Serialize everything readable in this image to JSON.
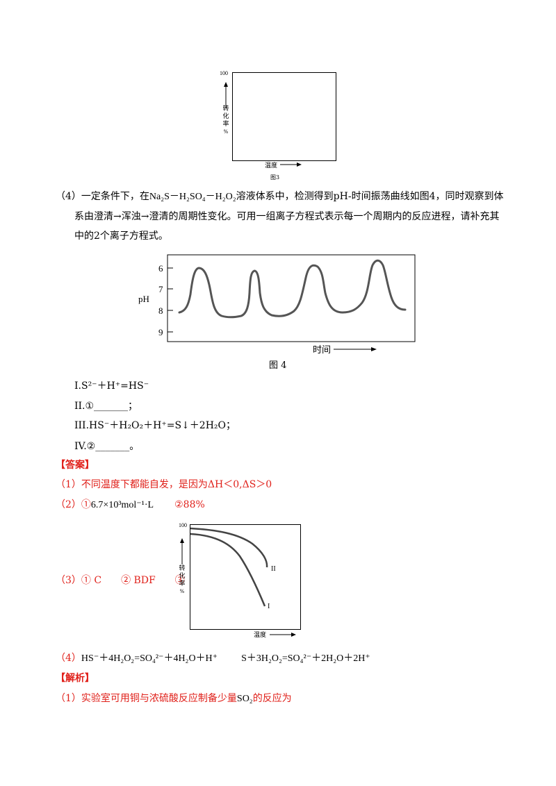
{
  "fig3": {
    "ytick": "100",
    "ylabel_chars": [
      "转",
      "化",
      "率",
      "%"
    ],
    "xlabel": "温度",
    "caption": "图3"
  },
  "q4": {
    "prefix": "（4）一定条件下，在",
    "system": "Na₂S－H₂SO₄－H₂O₂",
    "line1_rest": "溶液体系中，检测得到pH-时间振荡曲线如图4，同时观察到体",
    "line2": "系由澄清→浑浊→澄清的周期性变化。可用一组离子方程式表示每一个周期内的反应进程，请补充其",
    "line3": "中的2个离子方程式。"
  },
  "fig4": {
    "yticks": [
      "6",
      "7",
      "8",
      "9"
    ],
    "ylabel": "pH",
    "xlabel": "时间",
    "caption": "图 4"
  },
  "equations": {
    "I": "I.S²⁻＋H⁺=HS⁻",
    "II": "II.①_______；",
    "III": "III.HS⁻＋H₂O₂＋H⁺=S↓＋2H₂O；",
    "IV": "IV.②_______。"
  },
  "answer_header": "【答案】",
  "answers": {
    "a1": "（1）不同温度下都能自发，是因为ΔH＜0,ΔS＞0",
    "a2_prefix": "（2）①",
    "a2_value": "6.7×10³mol⁻¹·L",
    "a2_second": "②88%",
    "a3": "（3）① C　　② BDF　　③",
    "a4_prefix": "（4）",
    "a4_eq1": "HS⁻＋4H₂O₂=SO₄²⁻＋4H₂O＋H⁺",
    "a4_eq2": "S＋3H₂O₂=SO₄²⁻＋2H₂O＋2H⁺"
  },
  "fig5": {
    "ytick": "100",
    "ylabel_chars": [
      "转",
      "化",
      "率",
      "%"
    ],
    "xlabel": "温度",
    "curve_labels": [
      "II",
      "I"
    ]
  },
  "analysis_header": "【解析】",
  "analysis": {
    "line1_prefix": "（1）实验室可用铜与浓硫酸反应制备少量",
    "line1_formula": "SO₂",
    "line1_suffix": "的反应为"
  }
}
